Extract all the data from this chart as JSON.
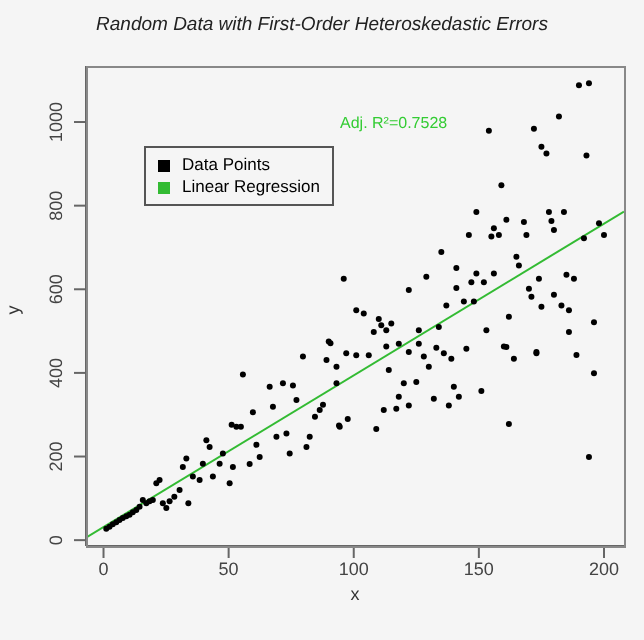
{
  "chart_data": {
    "type": "scatter",
    "title": "Random Data with First-Order Heteroskedastic Errors",
    "xlabel": "x",
    "ylabel": "y",
    "annotations": [
      "Adj. R²=0.7528"
    ],
    "xlim": [
      -7,
      208
    ],
    "ylim": [
      -14,
      1134
    ],
    "xticks": [
      0,
      50,
      100,
      150,
      200
    ],
    "yticks": [
      0,
      200,
      400,
      600,
      800,
      1000
    ],
    "legend": "top left",
    "series": [
      {
        "name": "Data Points",
        "marker": "circle",
        "color": "#000000",
        "x": [
          1.1,
          2.4,
          3.7,
          5.1,
          6.4,
          7.7,
          9.1,
          10.4,
          11.7,
          13.1,
          14.4,
          15.7,
          17.1,
          18.4,
          19.7,
          21.1,
          22.4,
          23.7,
          25.1,
          26.4,
          28.3,
          30.4,
          31.7,
          33.1,
          33.9,
          35.7,
          38.4,
          39.7,
          41.1,
          42.4,
          43.7,
          46.4,
          47.7,
          50.4,
          51.7,
          53.1,
          51.2,
          54.9,
          55.7,
          58.4,
          59.7,
          61.1,
          62.4,
          66.4,
          67.7,
          69.1,
          71.7,
          73.1,
          74.4,
          75.7,
          77.1,
          79.7,
          81.1,
          82.4,
          84.5,
          86.4,
          87.7,
          89.1,
          90.7,
          93.1,
          93.1,
          94.4,
          94.1,
          97.6,
          109,
          112,
          117,
          118,
          122,
          120,
          125,
          114,
          132,
          140,
          138,
          142,
          151,
          162,
          194,
          196,
          189,
          173,
          164,
          160,
          145,
          139,
          136,
          133,
          130,
          128,
          190,
          194,
          182,
          172,
          154,
          175,
          177,
          193,
          159,
          149,
          178,
          184,
          156,
          161,
          168,
          146,
          155,
          158,
          169,
          179,
          180,
          198,
          200,
          192,
          135,
          165,
          166,
          141,
          129,
          96,
          149,
          147,
          152,
          156,
          122,
          174,
          185,
          188,
          170,
          171,
          180,
          183,
          186,
          175,
          144,
          148,
          137,
          141,
          101,
          104,
          110,
          111,
          115,
          113,
          108,
          126,
          134,
          162,
          196,
          186,
          118,
          126,
          153,
          161,
          173,
          90,
          97,
          101,
          106,
          113,
          122
        ],
        "values": [
          27,
          32,
          38,
          43,
          48,
          53,
          57,
          61,
          67,
          72,
          80,
          96,
          88,
          93,
          96,
          136,
          144,
          88,
          77,
          93,
          104,
          120,
          175,
          195,
          88,
          152,
          144,
          183,
          239,
          223,
          152,
          183,
          207,
          136,
          175,
          271,
          276,
          271,
          396,
          182,
          306,
          228,
          199,
          367,
          319,
          247,
          375,
          255,
          207,
          370,
          335,
          439,
          223,
          247,
          295,
          311,
          324,
          431,
          471,
          415,
          375,
          271,
          274,
          290,
          266,
          311,
          314,
          343,
          322,
          375,
          378,
          407,
          338,
          367,
          322,
          343,
          357,
          278,
          199,
          399,
          443,
          450,
          434,
          463,
          458,
          434,
          447,
          460,
          415,
          439,
          1088,
          1093,
          1013,
          984,
          979,
          941,
          925,
          920,
          849,
          785,
          785,
          785,
          746,
          766,
          761,
          730,
          726,
          730,
          730,
          763,
          742,
          758,
          730,
          722,
          689,
          678,
          657,
          651,
          630,
          625,
          638,
          617,
          617,
          638,
          598,
          625,
          635,
          625,
          601,
          582,
          587,
          561,
          550,
          558,
          571,
          571,
          561,
          603,
          550,
          542,
          529,
          514,
          518,
          502,
          498,
          502,
          510,
          534,
          521,
          498,
          470,
          470,
          502,
          462,
          447,
          475,
          447,
          442,
          442,
          463,
          450
        ]
      },
      {
        "name": "Linear Regression",
        "type": "line",
        "marker": "none",
        "color": "#33bb33",
        "x": [
          -7,
          208
        ],
        "values": [
          6,
          786
        ]
      }
    ]
  }
}
